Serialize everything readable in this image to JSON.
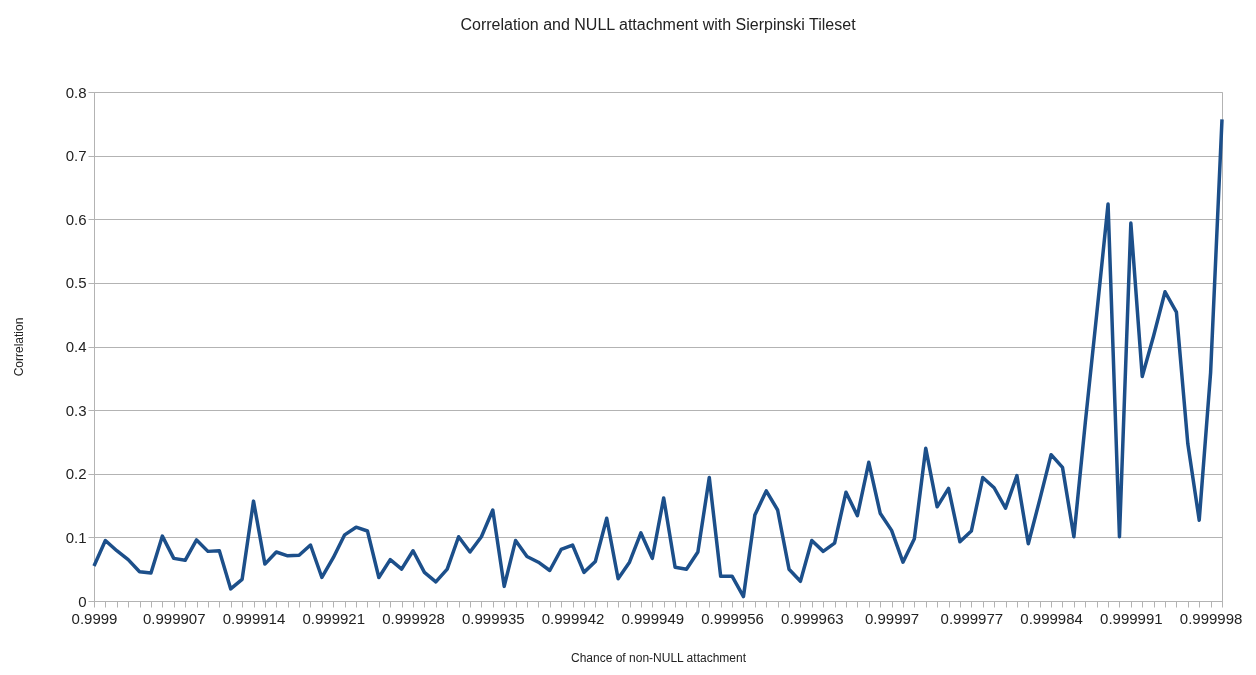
{
  "chart_data": {
    "type": "line",
    "title": "Correlation and NULL attachment with Sierpinski Tileset",
    "xlabel": "Chance of non-NULL attachment",
    "ylabel": "Correlation",
    "categories": [
      "0.9999",
      null,
      null,
      null,
      null,
      null,
      null,
      "0.999907",
      null,
      null,
      null,
      null,
      null,
      null,
      "0.999914",
      null,
      null,
      null,
      null,
      null,
      null,
      "0.999921",
      null,
      null,
      null,
      null,
      null,
      null,
      "0.999928",
      null,
      null,
      null,
      null,
      null,
      null,
      "0.999935",
      null,
      null,
      null,
      null,
      null,
      null,
      "0.999942",
      null,
      null,
      null,
      null,
      null,
      null,
      "0.999949",
      null,
      null,
      null,
      null,
      null,
      null,
      "0.999956",
      null,
      null,
      null,
      null,
      null,
      null,
      "0.999963",
      null,
      null,
      null,
      null,
      null,
      null,
      "0.99997",
      null,
      null,
      null,
      null,
      null,
      null,
      "0.999977",
      null,
      null,
      null,
      null,
      null,
      null,
      "0.999984",
      null,
      null,
      null,
      null,
      null,
      null,
      "0.999991",
      null,
      null,
      null,
      null,
      null,
      null,
      "0.999998",
      null
    ],
    "series": [
      {
        "color": "#1c4f8a",
        "values": [
          0.055,
          0.095,
          0.079,
          0.065,
          0.046,
          0.044,
          0.102,
          0.067,
          0.064,
          0.096,
          0.078,
          0.079,
          0.019,
          0.034,
          0.157,
          0.058,
          0.077,
          0.071,
          0.072,
          0.088,
          0.037,
          0.068,
          0.104,
          0.116,
          0.11,
          0.037,
          0.065,
          0.05,
          0.079,
          0.045,
          0.03,
          0.05,
          0.101,
          0.077,
          0.101,
          0.143,
          0.023,
          0.095,
          0.07,
          0.061,
          0.048,
          0.081,
          0.088,
          0.045,
          0.062,
          0.13,
          0.035,
          0.061,
          0.107,
          0.067,
          0.162,
          0.053,
          0.05,
          0.077,
          0.194,
          0.039,
          0.039,
          0.007,
          0.135,
          0.173,
          0.143,
          0.05,
          0.031,
          0.095,
          0.078,
          0.091,
          0.171,
          0.134,
          0.218,
          0.138,
          0.111,
          0.061,
          0.098,
          0.24,
          0.148,
          0.177,
          0.093,
          0.11,
          0.194,
          0.178,
          0.146,
          0.197,
          0.09,
          0.159,
          0.23,
          0.21,
          0.101,
          0.28,
          0.45,
          0.624,
          0.101,
          0.594,
          0.353,
          0.417,
          0.486,
          0.454,
          0.247,
          0.127,
          0.359,
          0.757
        ]
      }
    ],
    "ylim": [
      0,
      0.8
    ],
    "yticks": [
      0,
      0.1,
      0.2,
      0.3,
      0.4,
      0.5,
      0.6,
      0.7,
      0.8
    ],
    "grid": "y",
    "legend": false,
    "marker": "none",
    "line_style": "solid"
  }
}
